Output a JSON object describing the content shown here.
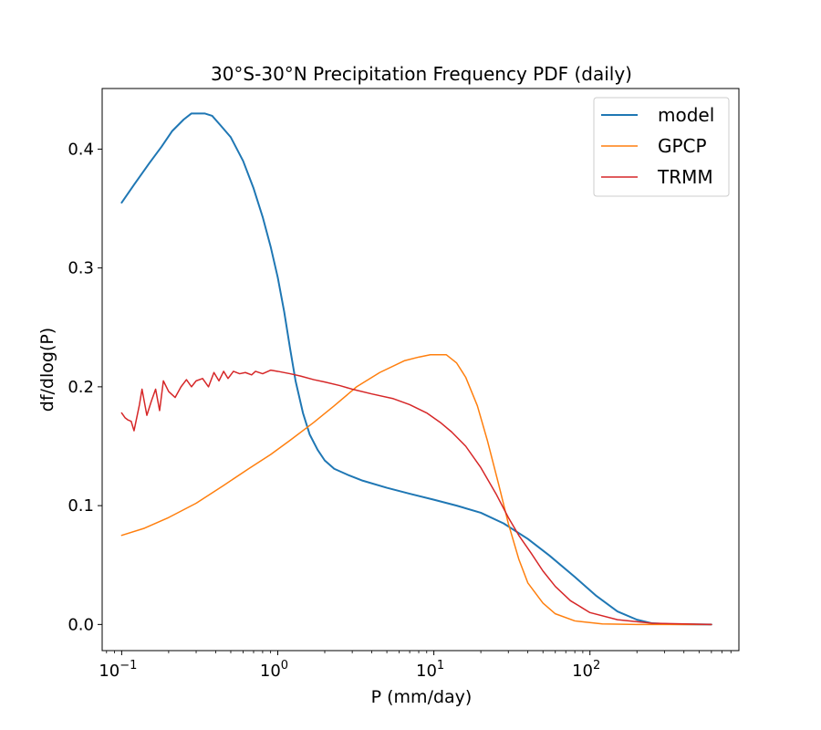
{
  "chart_data": {
    "type": "line",
    "title": "30°S-30°N Precipitation Frequency PDF (daily)",
    "xlabel": "P (mm/day)",
    "ylabel": "df/dlog(P)",
    "xscale": "log",
    "xlim": [
      0.075,
      900
    ],
    "ylim": [
      -0.022,
      0.451
    ],
    "xticks": [
      {
        "value": 0.1,
        "base": "10",
        "exp": "−1"
      },
      {
        "value": 1,
        "base": "10",
        "exp": "0"
      },
      {
        "value": 10,
        "base": "10",
        "exp": "1"
      },
      {
        "value": 100,
        "base": "10",
        "exp": "2"
      }
    ],
    "yticks": [
      {
        "value": 0.0,
        "label": "0.0"
      },
      {
        "value": 0.1,
        "label": "0.1"
      },
      {
        "value": 0.2,
        "label": "0.2"
      },
      {
        "value": 0.3,
        "label": "0.3"
      },
      {
        "value": 0.4,
        "label": "0.4"
      }
    ],
    "legend_position": "top-right",
    "series": [
      {
        "name": "model",
        "color": "#1f77b4",
        "width": 2,
        "points": [
          [
            0.1,
            0.355
          ],
          [
            0.12,
            0.37
          ],
          [
            0.15,
            0.388
          ],
          [
            0.18,
            0.402
          ],
          [
            0.21,
            0.415
          ],
          [
            0.25,
            0.425
          ],
          [
            0.28,
            0.43
          ],
          [
            0.34,
            0.43
          ],
          [
            0.38,
            0.428
          ],
          [
            0.43,
            0.42
          ],
          [
            0.5,
            0.41
          ],
          [
            0.6,
            0.39
          ],
          [
            0.7,
            0.367
          ],
          [
            0.8,
            0.343
          ],
          [
            0.9,
            0.318
          ],
          [
            1.0,
            0.292
          ],
          [
            1.1,
            0.263
          ],
          [
            1.2,
            0.232
          ],
          [
            1.3,
            0.205
          ],
          [
            1.45,
            0.178
          ],
          [
            1.6,
            0.16
          ],
          [
            1.8,
            0.147
          ],
          [
            2.0,
            0.138
          ],
          [
            2.3,
            0.131
          ],
          [
            2.8,
            0.126
          ],
          [
            3.5,
            0.121
          ],
          [
            5.0,
            0.115
          ],
          [
            7.0,
            0.11
          ],
          [
            10,
            0.105
          ],
          [
            14,
            0.1
          ],
          [
            20,
            0.094
          ],
          [
            28,
            0.085
          ],
          [
            40,
            0.072
          ],
          [
            55,
            0.058
          ],
          [
            80,
            0.04
          ],
          [
            110,
            0.024
          ],
          [
            150,
            0.011
          ],
          [
            200,
            0.004
          ],
          [
            250,
            0.001
          ],
          [
            320,
            0.0003
          ],
          [
            600,
            0.0
          ]
        ]
      },
      {
        "name": "GPCP",
        "color": "#ff7f0e",
        "width": 1.5,
        "points": [
          [
            0.1,
            0.075
          ],
          [
            0.14,
            0.081
          ],
          [
            0.2,
            0.09
          ],
          [
            0.3,
            0.102
          ],
          [
            0.45,
            0.117
          ],
          [
            0.65,
            0.131
          ],
          [
            0.9,
            0.143
          ],
          [
            1.2,
            0.155
          ],
          [
            1.7,
            0.17
          ],
          [
            2.3,
            0.184
          ],
          [
            3.2,
            0.2
          ],
          [
            4.5,
            0.212
          ],
          [
            6.5,
            0.222
          ],
          [
            8.0,
            0.225
          ],
          [
            9.5,
            0.227
          ],
          [
            12,
            0.227
          ],
          [
            14,
            0.22
          ],
          [
            16,
            0.208
          ],
          [
            19,
            0.184
          ],
          [
            22,
            0.155
          ],
          [
            26,
            0.118
          ],
          [
            30,
            0.085
          ],
          [
            35,
            0.055
          ],
          [
            40,
            0.035
          ],
          [
            50,
            0.018
          ],
          [
            60,
            0.009
          ],
          [
            80,
            0.003
          ],
          [
            120,
            0.0005
          ],
          [
            200,
            0.0
          ],
          [
            600,
            0.0
          ]
        ]
      },
      {
        "name": "TRMM",
        "color": "#d62728",
        "width": 1.5,
        "points": [
          [
            0.1,
            0.178
          ],
          [
            0.105,
            0.174
          ],
          [
            0.11,
            0.172
          ],
          [
            0.115,
            0.171
          ],
          [
            0.12,
            0.163
          ],
          [
            0.13,
            0.185
          ],
          [
            0.135,
            0.198
          ],
          [
            0.145,
            0.176
          ],
          [
            0.155,
            0.188
          ],
          [
            0.165,
            0.198
          ],
          [
            0.175,
            0.18
          ],
          [
            0.185,
            0.205
          ],
          [
            0.2,
            0.196
          ],
          [
            0.22,
            0.191
          ],
          [
            0.24,
            0.2
          ],
          [
            0.26,
            0.206
          ],
          [
            0.28,
            0.2
          ],
          [
            0.3,
            0.205
          ],
          [
            0.33,
            0.207
          ],
          [
            0.36,
            0.2
          ],
          [
            0.39,
            0.212
          ],
          [
            0.42,
            0.205
          ],
          [
            0.45,
            0.213
          ],
          [
            0.48,
            0.207
          ],
          [
            0.52,
            0.213
          ],
          [
            0.57,
            0.211
          ],
          [
            0.62,
            0.212
          ],
          [
            0.68,
            0.21
          ],
          [
            0.72,
            0.213
          ],
          [
            0.8,
            0.211
          ],
          [
            0.9,
            0.214
          ],
          [
            1.0,
            0.213
          ],
          [
            1.2,
            0.211
          ],
          [
            1.4,
            0.209
          ],
          [
            1.7,
            0.206
          ],
          [
            2.0,
            0.204
          ],
          [
            2.5,
            0.201
          ],
          [
            3.0,
            0.198
          ],
          [
            4.0,
            0.194
          ],
          [
            5.5,
            0.19
          ],
          [
            7.0,
            0.185
          ],
          [
            9.0,
            0.178
          ],
          [
            11,
            0.17
          ],
          [
            13,
            0.162
          ],
          [
            16,
            0.15
          ],
          [
            20,
            0.132
          ],
          [
            25,
            0.11
          ],
          [
            30,
            0.09
          ],
          [
            35,
            0.075
          ],
          [
            42,
            0.06
          ],
          [
            50,
            0.045
          ],
          [
            60,
            0.032
          ],
          [
            75,
            0.02
          ],
          [
            100,
            0.01
          ],
          [
            150,
            0.004
          ],
          [
            250,
            0.001
          ],
          [
            600,
            0.0
          ]
        ]
      }
    ]
  }
}
